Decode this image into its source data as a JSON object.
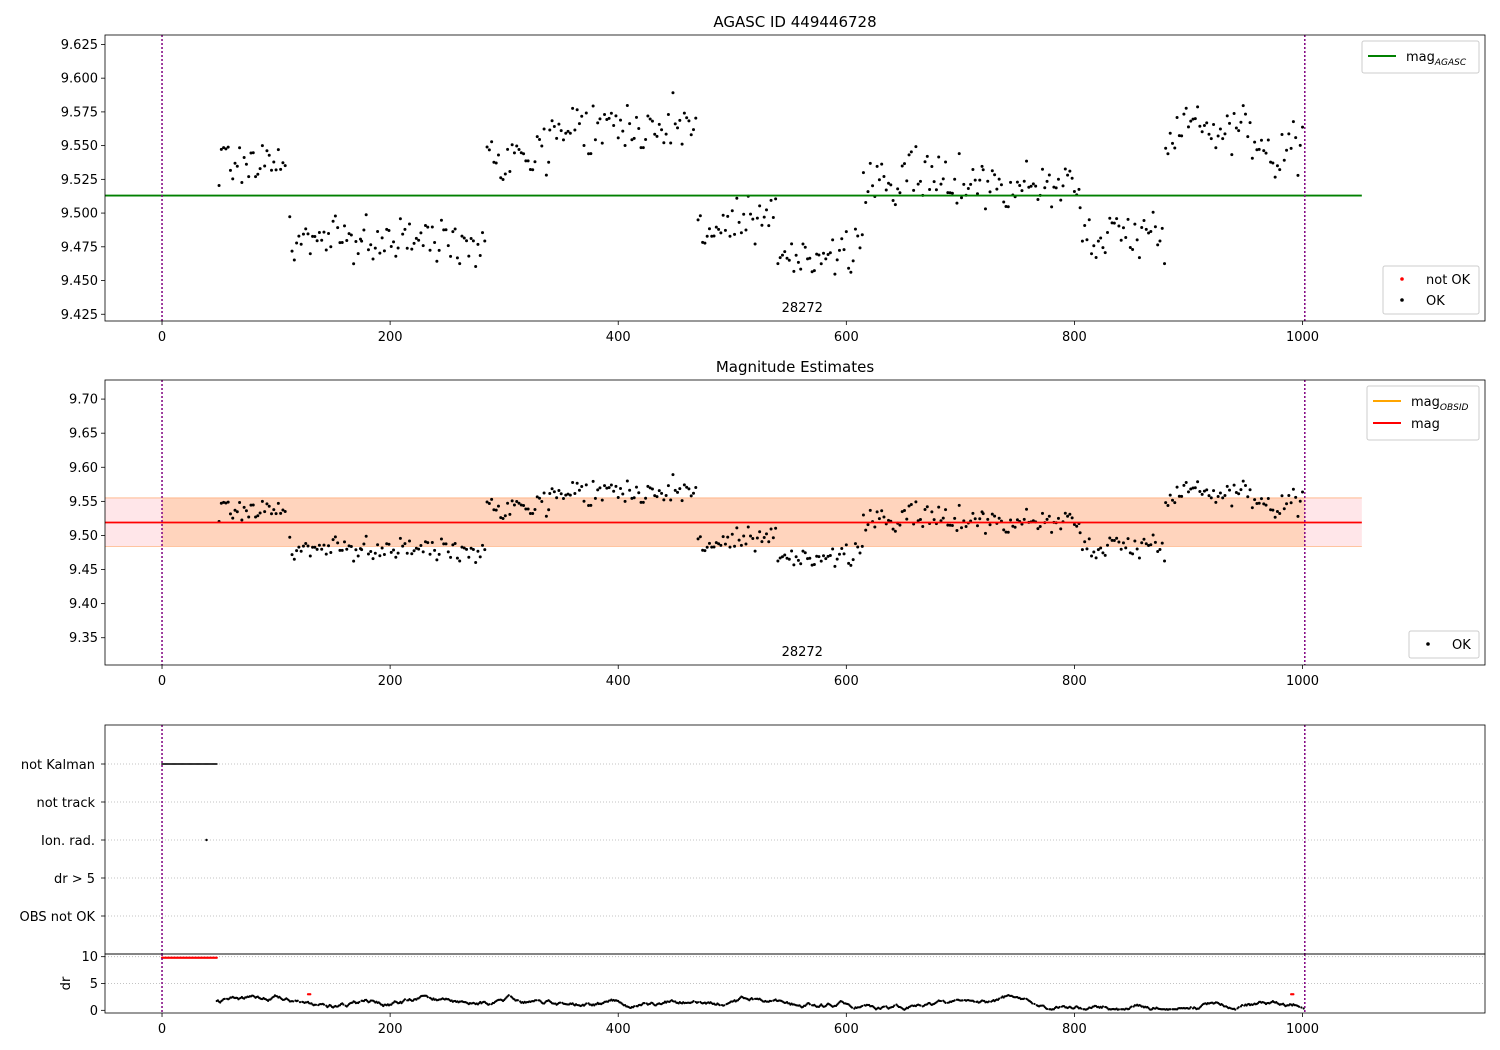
{
  "chart_data": [
    {
      "type": "scatter",
      "title": "AGASC ID 449446728",
      "xlim": [
        -50,
        1160
      ],
      "ylim": [
        9.42,
        9.632
      ],
      "x_ticks": [
        0,
        200,
        400,
        600,
        800,
        1000
      ],
      "y_ticks": [
        9.425,
        9.45,
        9.475,
        9.5,
        9.525,
        9.55,
        9.575,
        9.6,
        9.625
      ],
      "y_tick_labels": [
        "9.425",
        "9.450",
        "9.475",
        "9.500",
        "9.525",
        "9.550",
        "9.575",
        "9.600",
        "9.625"
      ],
      "annotation": {
        "text": "28272",
        "x": 500,
        "y": 9.427
      },
      "vlines": [
        0,
        1002
      ],
      "vline_color": "#800080",
      "hlines": [
        {
          "name": "mag_AGASC",
          "legend_main": "mag",
          "legend_sub": "AGASC",
          "y": 9.513,
          "x_range": [
            -50,
            1052
          ],
          "color": "#008000"
        }
      ],
      "legend_top": {
        "position": "top-right",
        "entries": [
          {
            "main": "mag",
            "sub": "AGASC",
            "color": "#008000",
            "kind": "line"
          }
        ]
      },
      "legend_bottom": {
        "position": "bottom-right",
        "entries": [
          {
            "label": "not OK",
            "color": "#ff0000",
            "kind": "dot"
          },
          {
            "label": "OK",
            "color": "#000000",
            "kind": "dot"
          }
        ]
      },
      "series": [
        {
          "name": "OK",
          "color": "#000000",
          "x_range": [
            50,
            1002
          ],
          "step": 2,
          "segments": [
            {
              "x": [
                50,
                110
              ],
              "mean": 9.538,
              "spread": 0.028
            },
            {
              "x": [
                112,
                175
              ],
              "mean": 9.48,
              "spread": 0.024
            },
            {
              "x": [
                175,
                285
              ],
              "mean": 9.48,
              "spread": 0.025
            },
            {
              "x": [
                285,
                340
              ],
              "mean": 9.545,
              "spread": 0.03
            },
            {
              "x": [
                340,
                470
              ],
              "mean": 9.565,
              "spread": 0.03
            },
            {
              "x": [
                470,
                540
              ],
              "mean": 9.49,
              "spread": 0.03
            },
            {
              "x": [
                540,
                615
              ],
              "mean": 9.47,
              "spread": 0.025
            },
            {
              "x": [
                615,
                720
              ],
              "mean": 9.525,
              "spread": 0.03
            },
            {
              "x": [
                720,
                805
              ],
              "mean": 9.52,
              "spread": 0.03
            },
            {
              "x": [
                805,
                880
              ],
              "mean": 9.485,
              "spread": 0.03
            },
            {
              "x": [
                880,
                960
              ],
              "mean": 9.565,
              "spread": 0.03
            },
            {
              "x": [
                960,
                1002
              ],
              "mean": 9.548,
              "spread": 0.03
            }
          ]
        }
      ]
    },
    {
      "type": "scatter",
      "title": "Magnitude Estimates",
      "xlim": [
        -50,
        1160
      ],
      "ylim": [
        9.31,
        9.728
      ],
      "x_ticks": [
        0,
        200,
        400,
        600,
        800,
        1000
      ],
      "y_ticks": [
        9.35,
        9.4,
        9.45,
        9.5,
        9.55,
        9.6,
        9.65,
        9.7
      ],
      "y_tick_labels": [
        "9.35",
        "9.40",
        "9.45",
        "9.50",
        "9.55",
        "9.60",
        "9.65",
        "9.70"
      ],
      "annotation": {
        "text": "28272",
        "x": 500,
        "y": 9.32
      },
      "vlines": [
        0,
        1002
      ],
      "vline_color": "#800080",
      "band": {
        "y": [
          9.484,
          9.555
        ],
        "x_range": [
          -50,
          1052
        ],
        "color": "#ffb6c1"
      },
      "band_inner": {
        "y": [
          9.484,
          9.555
        ],
        "x_range": [
          0,
          1002
        ],
        "color": "#ffc8a0"
      },
      "hlines": [
        {
          "name": "mag",
          "y": 9.519,
          "x_range": [
            -50,
            1052
          ],
          "color": "#ff0000"
        }
      ],
      "legend_top": {
        "position": "top-right",
        "entries": [
          {
            "main": "mag",
            "sub": "OBSID",
            "color": "#ffa500",
            "kind": "line"
          },
          {
            "main": "mag",
            "sub": "",
            "color": "#ff0000",
            "kind": "line"
          }
        ]
      },
      "legend_bottom": {
        "position": "bottom-right",
        "entries": [
          {
            "label": "OK",
            "color": "#000000",
            "kind": "dot"
          }
        ]
      },
      "series": [
        {
          "name": "OK",
          "color": "#000000",
          "x_range": [
            50,
            1002
          ],
          "step": 2,
          "segments": [
            {
              "x": [
                50,
                110
              ],
              "mean": 9.538,
              "spread": 0.028
            },
            {
              "x": [
                112,
                175
              ],
              "mean": 9.48,
              "spread": 0.024
            },
            {
              "x": [
                175,
                285
              ],
              "mean": 9.48,
              "spread": 0.025
            },
            {
              "x": [
                285,
                340
              ],
              "mean": 9.545,
              "spread": 0.03
            },
            {
              "x": [
                340,
                470
              ],
              "mean": 9.565,
              "spread": 0.03
            },
            {
              "x": [
                470,
                540
              ],
              "mean": 9.49,
              "spread": 0.03
            },
            {
              "x": [
                540,
                615
              ],
              "mean": 9.47,
              "spread": 0.025
            },
            {
              "x": [
                615,
                720
              ],
              "mean": 9.525,
              "spread": 0.03
            },
            {
              "x": [
                720,
                805
              ],
              "mean": 9.52,
              "spread": 0.03
            },
            {
              "x": [
                805,
                880
              ],
              "mean": 9.485,
              "spread": 0.03
            },
            {
              "x": [
                880,
                960
              ],
              "mean": 9.565,
              "spread": 0.03
            },
            {
              "x": [
                960,
                1002
              ],
              "mean": 9.548,
              "spread": 0.03
            }
          ]
        }
      ]
    },
    {
      "type": "scatter",
      "title": "",
      "xlim": [
        -50,
        1160
      ],
      "x_ticks": [
        0,
        200,
        400,
        600,
        800,
        1000
      ],
      "categories": [
        "not Kalman",
        "not track",
        "Ion. rad.",
        "dr > 5",
        "OBS not OK"
      ],
      "vlines": [
        0,
        1002
      ],
      "vline_color": "#800080",
      "flags": [
        {
          "category": "not Kalman",
          "x": [
            0,
            48
          ],
          "color": "#000000"
        },
        {
          "category": "Ion. rad.",
          "x": [
            39,
            39
          ],
          "color": "#000000"
        }
      ]
    },
    {
      "type": "scatter",
      "title": "",
      "ylabel": "dr",
      "xlim": [
        -50,
        1160
      ],
      "ylim": [
        -0.5,
        10.5
      ],
      "x_ticks": [
        0,
        200,
        400,
        600,
        800,
        1000
      ],
      "y_ticks": [
        0,
        5,
        10
      ],
      "y_tick_labels": [
        "0",
        "5",
        "10"
      ],
      "vlines": [
        0,
        1002
      ],
      "vline_color": "#800080",
      "series": [
        {
          "name": "dr not OK",
          "color": "#ff0000",
          "points": [
            {
              "x": [
                0,
                48
              ],
              "y": 9.8
            },
            {
              "x": [
                990,
                992
              ],
              "y": 3.0
            },
            {
              "x": [
                128,
                130
              ],
              "y": 3.0
            }
          ]
        },
        {
          "name": "dr OK",
          "color": "#000000",
          "x_range": [
            48,
            1002
          ],
          "mean": 1.5,
          "spread": 1.3
        }
      ]
    }
  ]
}
